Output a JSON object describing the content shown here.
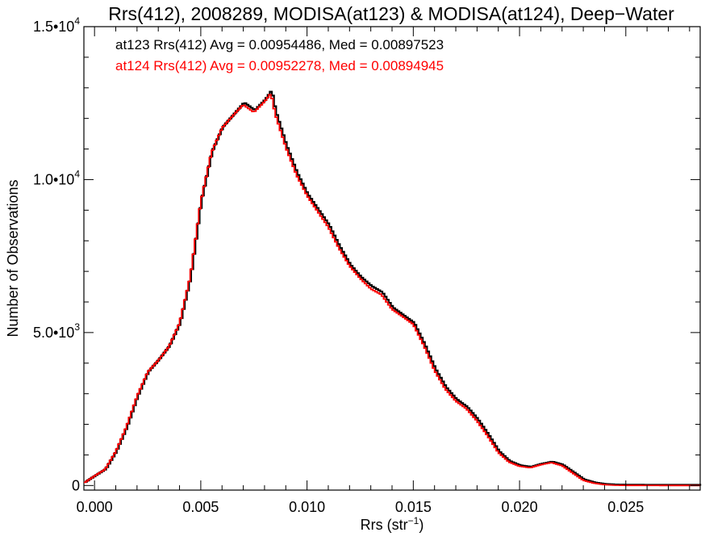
{
  "chart_data": {
    "type": "line",
    "title": "Rrs(412), 2008289, MODISA(at123) & MODISA(at124), Deep−Water",
    "xlabel": "Rrs (str",
    "xlabel_sup": "−1",
    "xlabel_end": ")",
    "ylabel": "Number of Observations",
    "xlim": [
      -0.0005,
      0.0285
    ],
    "ylim": [
      -150,
      15000
    ],
    "x_ticks": [
      {
        "value": 0.0,
        "label": "0.000"
      },
      {
        "value": 0.005,
        "label": "0.005"
      },
      {
        "value": 0.01,
        "label": "0.010"
      },
      {
        "value": 0.015,
        "label": "0.015"
      },
      {
        "value": 0.02,
        "label": "0.020"
      },
      {
        "value": 0.025,
        "label": "0.025"
      }
    ],
    "y_ticks": [
      {
        "value": 0,
        "base": "0",
        "exp": ""
      },
      {
        "value": 5000,
        "base": "5.0•10",
        "exp": "3"
      },
      {
        "value": 10000,
        "base": "1.0•10",
        "exp": "4"
      },
      {
        "value": 15000,
        "base": "1.5•10",
        "exp": "4"
      }
    ],
    "annotations": [
      {
        "text": "at123 Rrs(412) Avg = 0.00954486, Med = 0.00897523",
        "color": "#000000"
      },
      {
        "text": "at124 Rrs(412) Avg = 0.00952278, Med = 0.00894945",
        "color": "#ff0000"
      }
    ],
    "series": [
      {
        "name": "at123",
        "color": "#000000",
        "x": [
          -0.0005,
          0.0,
          0.0005,
          0.001,
          0.0015,
          0.002,
          0.0025,
          0.003,
          0.0035,
          0.004,
          0.0045,
          0.005,
          0.0055,
          0.006,
          0.0065,
          0.007,
          0.0075,
          0.008,
          0.0083,
          0.0085,
          0.009,
          0.0095,
          0.01,
          0.0105,
          0.011,
          0.0115,
          0.012,
          0.0125,
          0.013,
          0.0135,
          0.014,
          0.0145,
          0.015,
          0.0155,
          0.016,
          0.0165,
          0.017,
          0.0175,
          0.018,
          0.0185,
          0.019,
          0.0195,
          0.02,
          0.0205,
          0.021,
          0.0215,
          0.022,
          0.0225,
          0.023,
          0.0235,
          0.024,
          0.0245,
          0.025,
          0.026,
          0.027,
          0.0285
        ],
        "y": [
          80,
          300,
          520,
          1100,
          1900,
          2900,
          3700,
          4100,
          4550,
          5300,
          6800,
          9300,
          10900,
          11700,
          12100,
          12500,
          12250,
          12600,
          12900,
          12200,
          11100,
          10200,
          9500,
          9000,
          8500,
          7800,
          7200,
          6800,
          6500,
          6300,
          5800,
          5550,
          5300,
          4600,
          3800,
          3200,
          2800,
          2550,
          2150,
          1650,
          1100,
          780,
          640,
          590,
          690,
          760,
          660,
          420,
          180,
          80,
          30,
          10,
          5,
          2,
          0,
          0
        ]
      },
      {
        "name": "at124",
        "color": "#ff0000",
        "x": [
          -0.0005,
          0.0,
          0.0005,
          0.001,
          0.0015,
          0.002,
          0.0025,
          0.003,
          0.0035,
          0.004,
          0.0045,
          0.005,
          0.0055,
          0.006,
          0.0065,
          0.007,
          0.0075,
          0.008,
          0.0083,
          0.0085,
          0.009,
          0.0095,
          0.01,
          0.0105,
          0.011,
          0.0115,
          0.012,
          0.0125,
          0.013,
          0.0135,
          0.014,
          0.0145,
          0.015,
          0.0155,
          0.016,
          0.0165,
          0.017,
          0.0175,
          0.018,
          0.0185,
          0.019,
          0.0195,
          0.02,
          0.0205,
          0.021,
          0.0215,
          0.022,
          0.0225,
          0.023,
          0.0235,
          0.024,
          0.0245,
          0.025,
          0.026,
          0.027,
          0.0285
        ],
        "y": [
          80,
          310,
          530,
          1110,
          1920,
          2920,
          3710,
          4090,
          4540,
          5310,
          6820,
          9290,
          10880,
          11690,
          12080,
          12450,
          12200,
          12550,
          12820,
          12150,
          11060,
          10160,
          9480,
          8960,
          8450,
          7760,
          7180,
          6770,
          6430,
          6240,
          5760,
          5520,
          5270,
          4570,
          3760,
          3160,
          2760,
          2510,
          2110,
          1620,
          1080,
          770,
          630,
          580,
          680,
          750,
          650,
          410,
          170,
          75,
          28,
          9,
          4,
          2,
          0,
          0
        ]
      }
    ]
  }
}
